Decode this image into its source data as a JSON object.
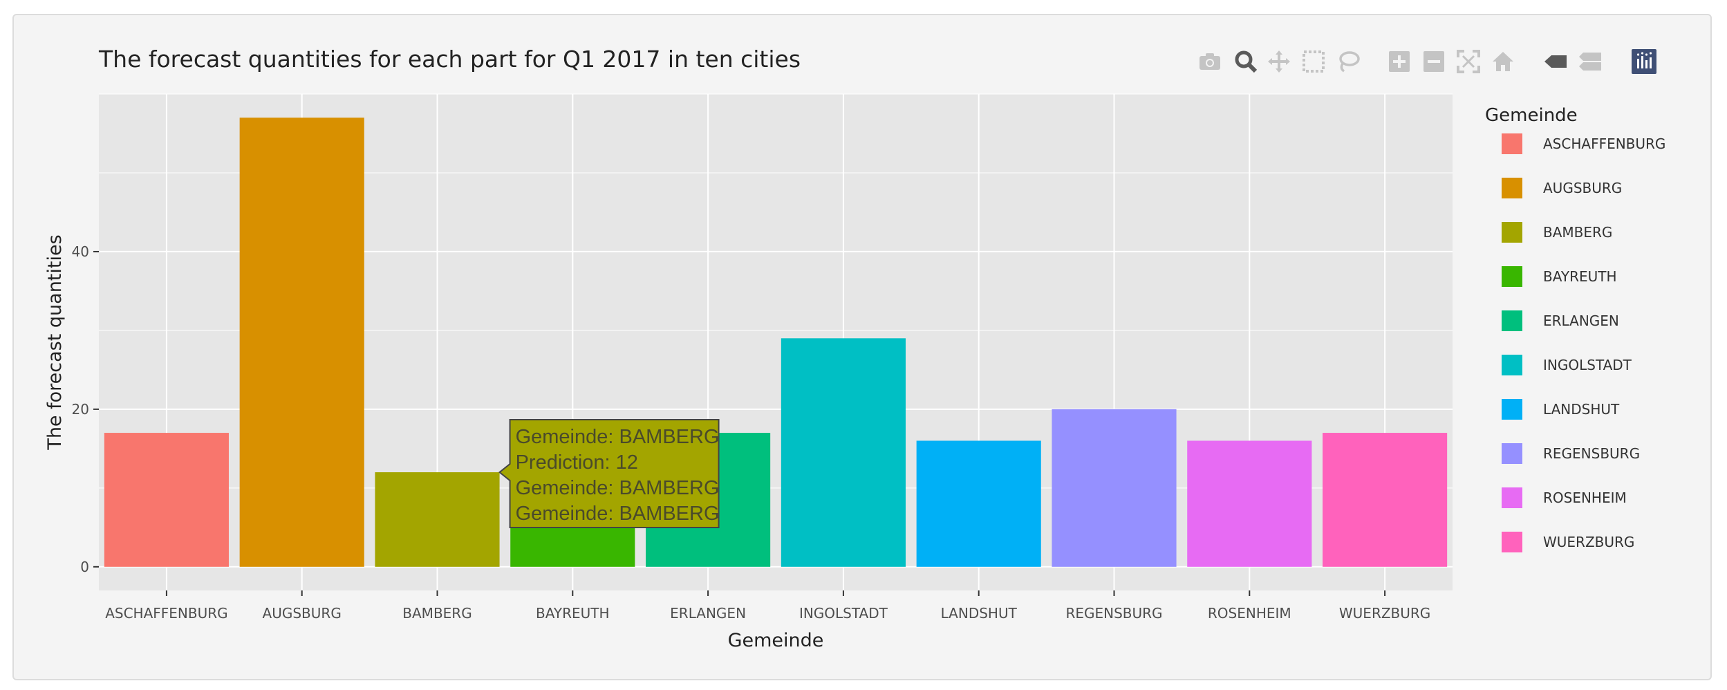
{
  "toolbar": {
    "icons": [
      "camera-icon",
      "zoom-icon",
      "pan-icon",
      "box-select-icon",
      "lasso-select-icon",
      "zoom-in-icon",
      "zoom-out-icon",
      "autoscale-icon",
      "reset-axes-icon",
      "hover-closest-icon",
      "hover-compare-icon",
      "plotly-logo-icon"
    ]
  },
  "colors": {
    "panel_bg": "#e6e6e6",
    "grid": "#ffffff"
  },
  "tooltip": {
    "lines": [
      "Gemeinde: BAMBERG",
      "Prediction: 12",
      "Gemeinde: BAMBERG",
      "Gemeinde: BAMBERG"
    ],
    "category": "BAMBERG"
  },
  "chart_data": {
    "type": "bar",
    "title": "The forecast quantities for each part for Q1 2017 in ten cities",
    "xlabel": "Gemeinde",
    "ylabel": "The forecast quantities",
    "ylim": [
      -3,
      60
    ],
    "yticks": [
      0,
      20,
      40
    ],
    "categories": [
      "ASCHAFFENBURG",
      "AUGSBURG",
      "BAMBERG",
      "BAYREUTH",
      "ERLANGEN",
      "INGOLSTADT",
      "LANDSHUT",
      "REGENSBURG",
      "ROSENHEIM",
      "WUERZBURG"
    ],
    "values": [
      17,
      57,
      12,
      17,
      17,
      29,
      16,
      20,
      16,
      17
    ],
    "colors": [
      "#F8766D",
      "#D89000",
      "#A3A500",
      "#39B600",
      "#00BF7D",
      "#00BFC4",
      "#00B0F6",
      "#9590FF",
      "#E76BF3",
      "#FF62BC"
    ],
    "grid": true,
    "legend": {
      "title": "Gemeinde",
      "position": "right",
      "entries": [
        "ASCHAFFENBURG",
        "AUGSBURG",
        "BAMBERG",
        "BAYREUTH",
        "ERLANGEN",
        "INGOLSTADT",
        "LANDSHUT",
        "REGENSBURG",
        "ROSENHEIM",
        "WUERZBURG"
      ]
    }
  }
}
